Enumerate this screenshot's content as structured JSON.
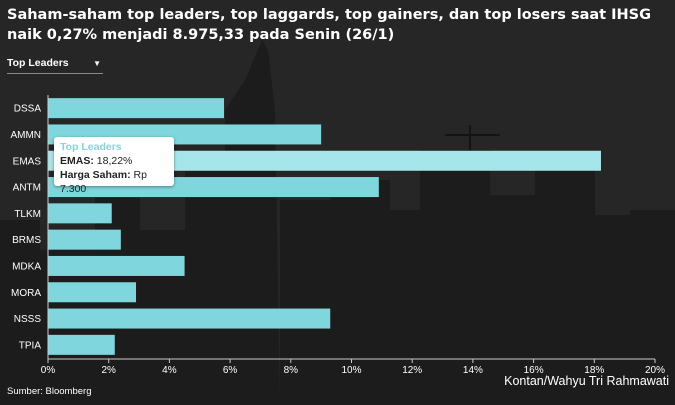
{
  "header": {
    "title": "Saham-saham top leaders, top laggards, top gainers, dan top losers saat IHSG naik 0,27% menjadi 8.975,33 pada Senin (26/1)"
  },
  "dropdown": {
    "selected": "Top Leaders",
    "icon": "caret-down-icon"
  },
  "tooltip": {
    "title": "Top Leaders",
    "emas_label": "EMAS:",
    "emas_value": "18,22%",
    "price_label": "Harga Saham:",
    "price_value": "Rp 7.300"
  },
  "footer": {
    "source": "Sumber: Bloomberg",
    "credit": "Kontan/Wahyu Tri Rahmawati"
  },
  "colors": {
    "bar": "#7fd6dd",
    "bar_highlight": "#a6e6ea",
    "background": "#262626",
    "grid": "#4a4a4a"
  },
  "chart_data": {
    "type": "bar",
    "orientation": "horizontal",
    "categories": [
      "DSSA",
      "AMMN",
      "EMAS",
      "ANTM",
      "TLKM",
      "BRMS",
      "MDKA",
      "MORA",
      "NSSS",
      "TPIA"
    ],
    "values": [
      5.8,
      9.0,
      18.22,
      10.9,
      2.1,
      2.4,
      4.5,
      2.9,
      9.3,
      2.2
    ],
    "xlim": [
      0,
      20
    ],
    "xticks": [
      0,
      2,
      4,
      6,
      8,
      10,
      12,
      14,
      16,
      18,
      20
    ],
    "xtick_labels": [
      "0%",
      "2%",
      "4%",
      "6%",
      "8%",
      "10%",
      "12%",
      "14%",
      "16%",
      "18%",
      "20%"
    ],
    "highlighted": "EMAS",
    "grid": false,
    "legend": "none"
  }
}
